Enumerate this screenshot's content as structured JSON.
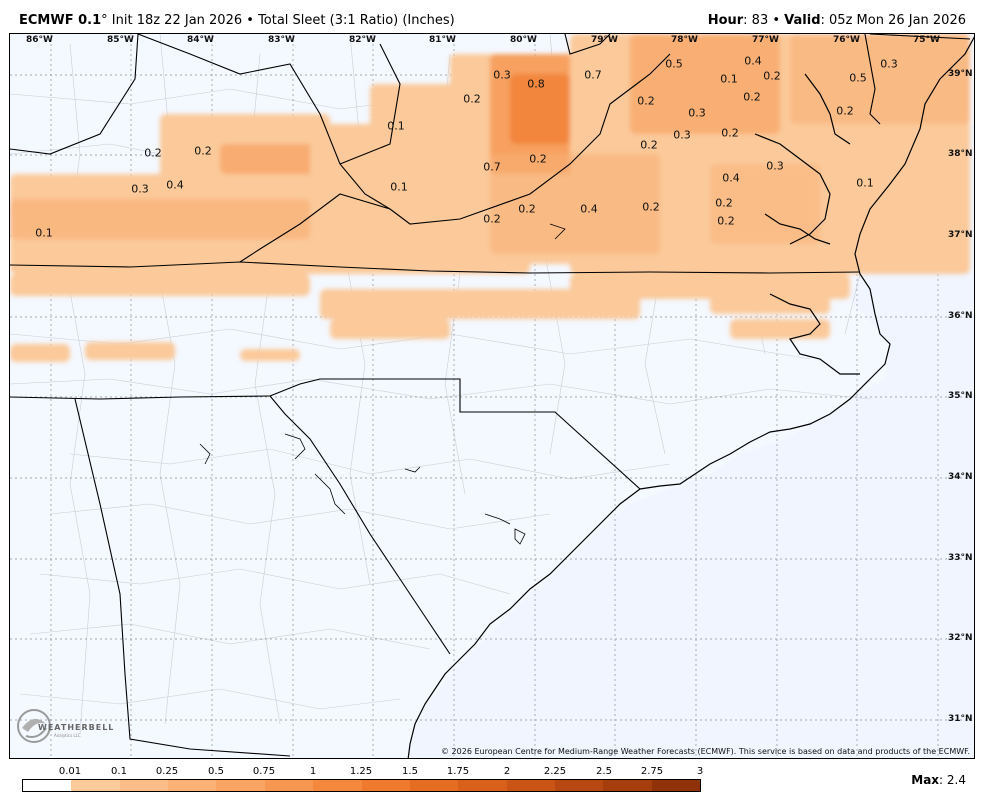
{
  "header": {
    "model": "ECMWF 0.1",
    "degree": "°",
    "init": " Init 18z 22 Jan 2026",
    "bullet1": " • ",
    "product": "Total Sleet (3:1 Ratio) (Inches)",
    "hour_label": "Hour",
    "hour_value": ": 83",
    "bullet2": " • ",
    "valid_label": "Valid",
    "valid_value": ": 05z Mon 26 Jan 2026"
  },
  "map": {
    "longitude_labels": [
      "86°W",
      "85°W",
      "84°W",
      "83°W",
      "82°W",
      "81°W",
      "80°W",
      "79°W",
      "78°W",
      "77°W",
      "76°W",
      "75°W"
    ],
    "latitude_labels": [
      "39°N",
      "38°N",
      "37°N",
      "36°N",
      "35°N",
      "34°N",
      "33°N",
      "32°N",
      "31°N"
    ],
    "value_labels": [
      "0.3",
      "0.8",
      "0.7",
      "0.5",
      "0.4",
      "0.1",
      "0.2",
      "0.5",
      "0.3",
      "0.2",
      "0.2",
      "0.3",
      "0.2",
      "0.2",
      "0.1",
      "0.3",
      "0.2",
      "0.2",
      "0.2",
      "0.2",
      "0.2",
      "0.7",
      "0.3",
      "0.3",
      "0.4",
      "0.1",
      "0.4",
      "0.1",
      "0.2",
      "0.4",
      "0.2",
      "0.2",
      "0.2",
      "0.2",
      "0.1"
    ],
    "copyright": "© 2026 European Centre for Medium-Range Weather Forecasts (ECMWF). This service is based on data and products of the ECMWF.",
    "logo": "WEATHERBELL",
    "logo_sub": "Analytics LLC"
  },
  "legend": {
    "ticks": [
      "0.01",
      "0.1",
      "0.25",
      "0.5",
      "0.75",
      "1",
      "1.25",
      "1.5",
      "1.75",
      "2",
      "2.25",
      "2.5",
      "2.75",
      "3"
    ],
    "colors": [
      "#ffffff",
      "#fbc99a",
      "#fabd87",
      "#f9b176",
      "#f8a463",
      "#f69650",
      "#f4883d",
      "#ef7a2e",
      "#e56d22",
      "#d9601a",
      "#c95415",
      "#b84811",
      "#a63d0d",
      "#8f320a"
    ],
    "max_label": "Max",
    "max_value": ": 2.4"
  }
}
